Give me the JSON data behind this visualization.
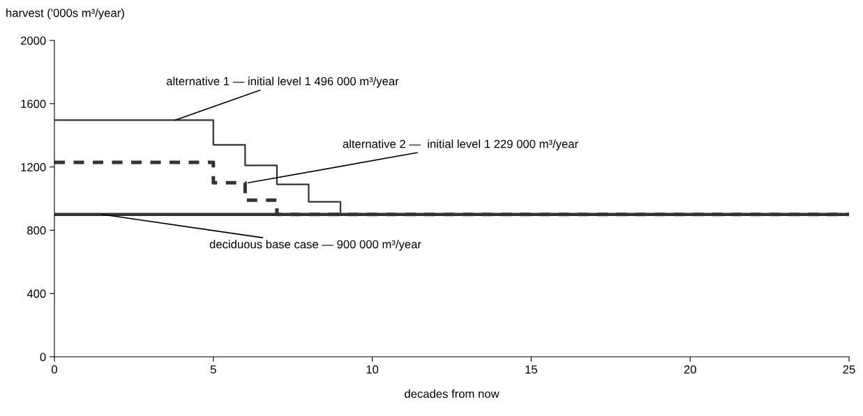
{
  "chart_data": {
    "type": "step",
    "xlabel": "decades from now",
    "ylabel": "harvest ('000s m³/year)",
    "xlim": [
      0,
      25
    ],
    "ylim": [
      0,
      2000
    ],
    "xticks": [
      0,
      5,
      10,
      15,
      20,
      25
    ],
    "yticks": [
      0,
      400,
      800,
      1200,
      1600,
      2000
    ],
    "grid": false,
    "legend": false,
    "marker": "none",
    "series": [
      {
        "color": "#333333",
        "line_style": "solid",
        "x": [
          0,
          5,
          6,
          7,
          8,
          9,
          25
        ],
        "values": [
          1496,
          1340,
          1210,
          1090,
          980,
          900,
          900
        ]
      },
      {
        "color": "#333333",
        "line_style": "dashed",
        "x": [
          0,
          5,
          6,
          7,
          25
        ],
        "values": [
          1229,
          1100,
          990,
          900,
          900
        ]
      },
      {
        "color": "#333333",
        "line_style": "solid",
        "x": [
          0,
          25
        ],
        "values": [
          900,
          900
        ]
      }
    ],
    "annotations": [
      {
        "text": "alternative 1 — initial level 1 496 000 m³/year",
        "x": 3.8,
        "y": 1496
      },
      {
        "text": "alternative 2 —  initial level 1 229 000 m³/year",
        "x": 6.1,
        "y": 1100
      },
      {
        "text": "deciduous base case — 900 000 m³/year",
        "x": 1.5,
        "y": 900
      }
    ]
  }
}
